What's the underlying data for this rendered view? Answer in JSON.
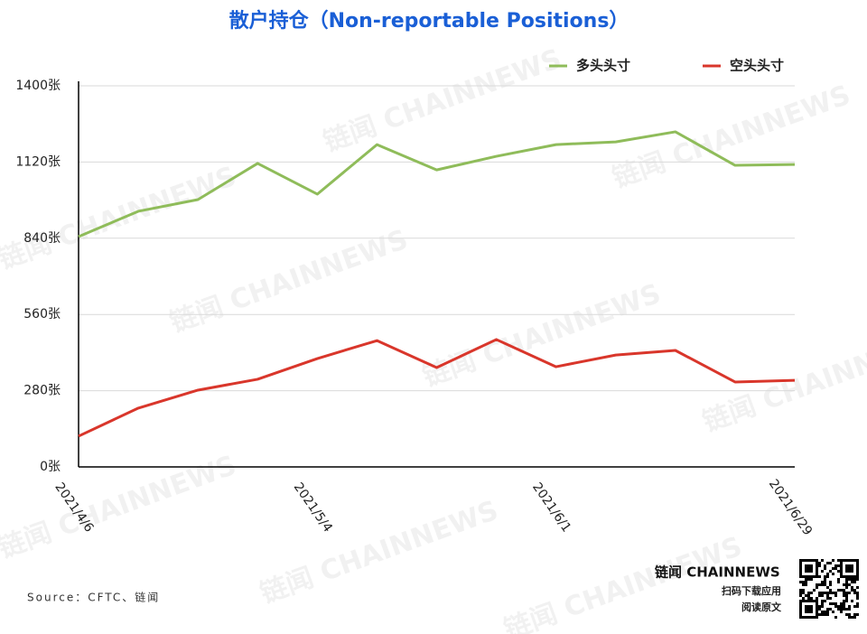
{
  "chart_data": {
    "type": "line",
    "title": "散户持仓（Non-reportable Positions）",
    "categories": [
      "2021/4/6",
      null,
      null,
      null,
      "2021/5/4",
      null,
      null,
      null,
      "2021/6/1",
      null,
      null,
      null,
      "2021/6/29"
    ],
    "series": [
      {
        "name": "多头头寸",
        "color": "#8fbc5a",
        "values": [
          846,
          939,
          982,
          1115,
          1002,
          1184,
          1091,
          1141,
          1184,
          1194,
          1231,
          1108,
          1111
        ]
      },
      {
        "name": "空头头寸",
        "color": "#d9362b",
        "values": [
          113,
          216,
          282,
          322,
          398,
          464,
          365,
          468,
          368,
          411,
          428,
          312,
          318
        ]
      }
    ],
    "ylim": [
      0,
      1400
    ],
    "yticks": [
      {
        "value": 0,
        "label": "0张"
      },
      {
        "value": 280,
        "label": "280张"
      },
      {
        "value": 560,
        "label": "560张"
      },
      {
        "value": 840,
        "label": "840张"
      },
      {
        "value": 1120,
        "label": "1120张"
      },
      {
        "value": 1400,
        "label": "1400张"
      }
    ],
    "grid": true,
    "legend": "top-right"
  },
  "source": "Source：CFTC、链闻",
  "logo": "链闻 CHAINNEWS",
  "download": "扫码下载应用",
  "read": "阅读原文",
  "watermark": "链闻 CHAINNEWS"
}
